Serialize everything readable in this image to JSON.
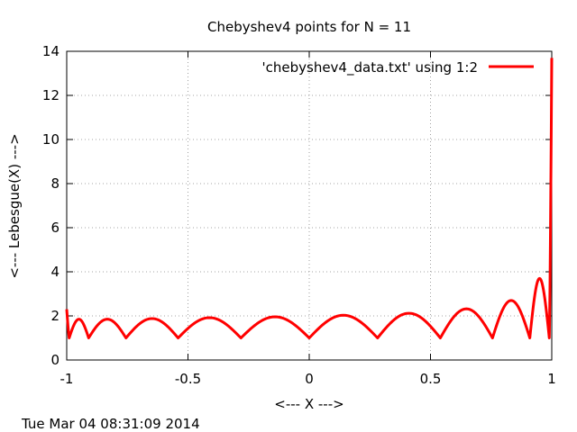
{
  "chart_data": {
    "type": "line",
    "title": "Chebyshev4 points for N = 11",
    "xlabel": "<--- X --->",
    "ylabel": "<--- Lebesgue(X) --->",
    "xlim": [
      -1,
      1
    ],
    "ylim": [
      0,
      14
    ],
    "xticks": [
      -1,
      -0.5,
      0,
      0.5,
      1
    ],
    "xtick_labels": [
      "-1",
      "-0.5",
      "0",
      "0.5",
      "1"
    ],
    "yticks": [
      0,
      2,
      4,
      6,
      8,
      10,
      12,
      14
    ],
    "ytick_labels": [
      "0",
      "2",
      "4",
      "6",
      "8",
      "10",
      "12",
      "14"
    ],
    "grid": true,
    "legend_position": "top-right",
    "series": [
      {
        "name": "'chebyshev4_data.txt' using 1:2",
        "color": "#ff0000",
        "nodes": [
          -0.9898,
          -0.9096,
          -0.7557,
          -0.5406,
          -0.2817,
          0.0,
          0.2817,
          0.5406,
          0.7557,
          0.9096,
          0.9898
        ],
        "peaks": [
          {
            "x": -1.0,
            "y": 2.3
          },
          {
            "x": -0.96,
            "y": 1.85
          },
          {
            "x": -0.84,
            "y": 1.85
          },
          {
            "x": -0.68,
            "y": 1.88
          },
          {
            "x": -0.46,
            "y": 1.92
          },
          {
            "x": -0.21,
            "y": 1.96
          },
          {
            "x": 0.065,
            "y": 2.03
          },
          {
            "x": 0.325,
            "y": 2.12
          },
          {
            "x": 0.575,
            "y": 2.32
          },
          {
            "x": 0.775,
            "y": 2.7
          },
          {
            "x": 0.92,
            "y": 3.7
          },
          {
            "x": 1.0,
            "y": 13.7
          }
        ],
        "minimum_value": 1.0
      }
    ]
  },
  "footer": {
    "timestamp": "Tue Mar 04 08:31:09 2014"
  }
}
